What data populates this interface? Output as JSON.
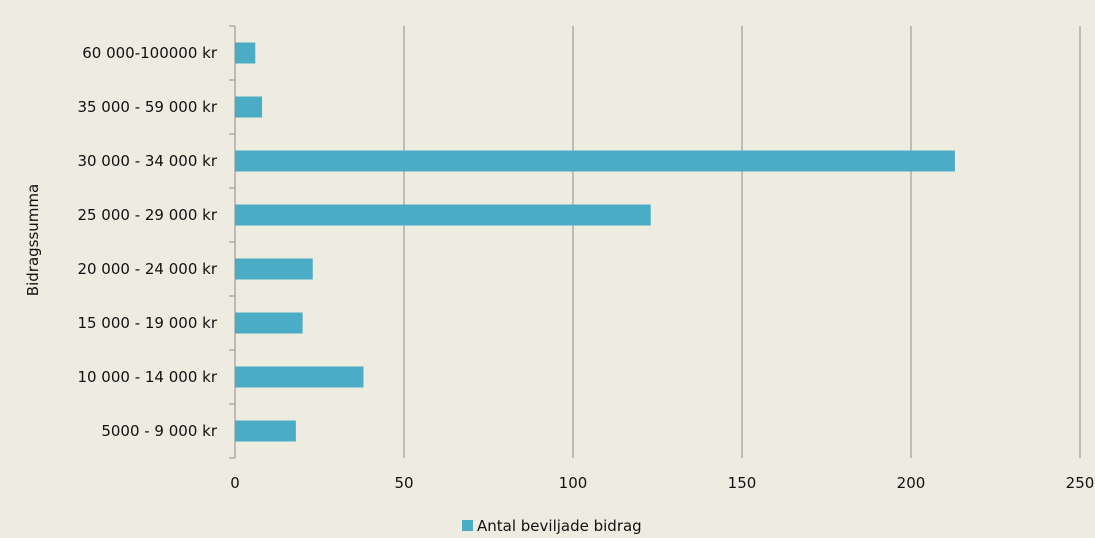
{
  "chart_data": {
    "type": "bar",
    "orientation": "horizontal",
    "categories": [
      "60 000-100000 kr",
      "35 000 - 59 000 kr",
      "30 000 - 34 000 kr",
      "25 000 - 29 000 kr",
      "20 000 - 24 000 kr",
      "15 000 - 19 000 kr",
      "10 000 - 14 000 kr",
      "5000 - 9 000 kr"
    ],
    "series": [
      {
        "name": "Antal beviljade bidrag",
        "values": [
          6,
          8,
          213,
          123,
          23,
          20,
          38,
          18
        ],
        "color": "#4bacc6"
      }
    ],
    "xlim": [
      0,
      250
    ],
    "xticks": [
      0,
      50,
      100,
      150,
      200,
      250
    ],
    "xlabel": "",
    "ylabel": "Bidragssumma",
    "grid": true,
    "legend": "bottom-center"
  },
  "colors": {
    "background": "#eeebe1",
    "grid": "#8c8c8c",
    "axis": "#8c8c8c"
  }
}
